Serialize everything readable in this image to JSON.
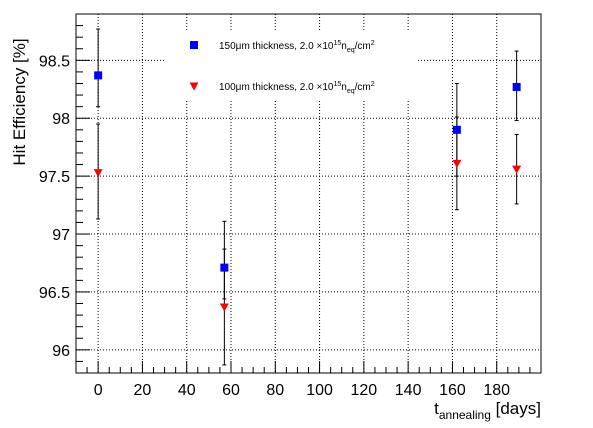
{
  "chart_data": {
    "type": "scatter",
    "xlabel": "t",
    "xlabel_sub": "annealing",
    "xlabel_unit": " [days]",
    "ylabel": "Hit Efficiency [%]",
    "xlim": [
      -10,
      200
    ],
    "ylim": [
      95.8,
      98.9
    ],
    "xticks": [
      0,
      20,
      40,
      60,
      80,
      100,
      120,
      140,
      160,
      180
    ],
    "yticks": [
      96,
      96.5,
      97,
      97.5,
      98,
      98.5
    ],
    "grid": true,
    "legend_position": "top",
    "series": [
      {
        "name": "150μm thickness,  2.0 × 10¹⁵n_eq/cm²",
        "legend": {
          "main": "150μm thickness,  2.0 ×10",
          "sup1": "15",
          "n": "n",
          "sub": "eq",
          "unit": "/cm",
          "sup2": "2"
        },
        "marker": "square",
        "color": "#0000ff",
        "points": [
          {
            "x": 0,
            "y": 98.37,
            "err_low": 98.1,
            "err_high": 98.77
          },
          {
            "x": 57,
            "y": 96.71,
            "err_low": 96.44,
            "err_high": 97.11
          },
          {
            "x": 162,
            "y": 97.9,
            "err_low": 97.5,
            "err_high": 98.3
          },
          {
            "x": 189,
            "y": 98.27,
            "err_low": 97.98,
            "err_high": 98.58
          }
        ]
      },
      {
        "name": "100μm thickness,  2.0 × 10¹⁵n_eq/cm²",
        "legend": {
          "main": "100μm thickness,  2.0 ×10",
          "sup1": "15",
          "n": "n",
          "sub": "eq",
          "unit": "/cm",
          "sup2": "2"
        },
        "marker": "triangle-down",
        "color": "#ff0000",
        "points": [
          {
            "x": 0,
            "y": 97.53,
            "err_low": 97.13,
            "err_high": 97.95
          },
          {
            "x": 57,
            "y": 96.37,
            "err_low": 95.87,
            "err_high": 96.87
          },
          {
            "x": 162,
            "y": 97.61,
            "err_low": 97.21,
            "err_high": 98.01
          },
          {
            "x": 189,
            "y": 97.56,
            "err_low": 97.26,
            "err_high": 97.86
          }
        ]
      }
    ]
  }
}
